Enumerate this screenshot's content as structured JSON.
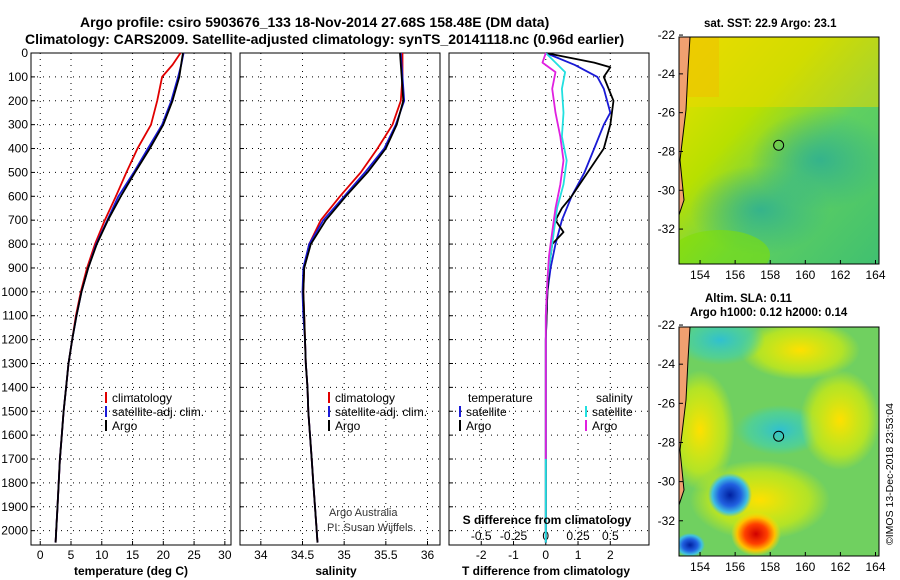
{
  "title": {
    "line1": "Argo profile: csiro 5903676_133 18-Nov-2014 27.68S 158.48E (DM data)",
    "line2": "Climatology: CARS2009. Satellite-adjusted climatology: synTS_20141118.nc (0.96d earlier)"
  },
  "colors": {
    "climatology": "#e00000",
    "satellite": "#1a1ad6",
    "argo": "#000000",
    "salinity_satellite": "#22e0e0",
    "salinity_argo": "#e020e0",
    "land": "#f0a070",
    "marker": "#000000"
  },
  "credit": {
    "line1": "Argo Australia",
    "line2": "PI: Susan Wijffels"
  },
  "stamp": "©IMOS 13-Dec-2018 23:53:04",
  "chart_data": [
    {
      "type": "line",
      "id": "temperature",
      "xlabel": "temperature (deg C)",
      "xlim": [
        -1.5,
        31
      ],
      "ylim": [
        2060,
        0
      ],
      "xticks": [
        0,
        5,
        10,
        15,
        20,
        25,
        30
      ],
      "yticks": [
        0,
        100,
        200,
        300,
        400,
        500,
        600,
        700,
        800,
        900,
        1000,
        1100,
        1200,
        1300,
        1400,
        1500,
        1600,
        1700,
        1800,
        1900,
        2000
      ],
      "legend": [
        "climatology",
        "satellite-adj. clim.",
        "Argo"
      ],
      "series": [
        {
          "name": "climatology",
          "color": "#e00000",
          "points": [
            [
              22.8,
              0
            ],
            [
              21.5,
              50
            ],
            [
              19.8,
              100
            ],
            [
              19.0,
              200
            ],
            [
              18.0,
              300
            ],
            [
              15.8,
              400
            ],
            [
              14.0,
              500
            ],
            [
              12.3,
              600
            ],
            [
              10.5,
              700
            ],
            [
              8.9,
              800
            ],
            [
              7.6,
              900
            ],
            [
              6.6,
              1000
            ],
            [
              5.8,
              1100
            ],
            [
              5.2,
              1200
            ],
            [
              4.6,
              1300
            ],
            [
              4.2,
              1400
            ],
            [
              3.8,
              1500
            ],
            [
              3.5,
              1600
            ],
            [
              3.2,
              1700
            ],
            [
              3.0,
              1800
            ],
            [
              2.8,
              1900
            ],
            [
              2.6,
              2000
            ],
            [
              2.5,
              2050
            ]
          ]
        },
        {
          "name": "satellite-adj. clim.",
          "color": "#1a1ad6",
          "points": [
            [
              23.3,
              0
            ],
            [
              22.9,
              50
            ],
            [
              22.4,
              100
            ],
            [
              21.3,
              200
            ],
            [
              19.8,
              300
            ],
            [
              17.5,
              400
            ],
            [
              15.2,
              500
            ],
            [
              12.7,
              600
            ],
            [
              10.9,
              700
            ],
            [
              9.1,
              800
            ],
            [
              7.8,
              900
            ],
            [
              6.7,
              1000
            ],
            [
              5.9,
              1100
            ],
            [
              5.2,
              1200
            ],
            [
              4.6,
              1300
            ],
            [
              4.2,
              1400
            ],
            [
              3.8,
              1500
            ],
            [
              3.5,
              1600
            ],
            [
              3.2,
              1700
            ],
            [
              3.0,
              1800
            ],
            [
              2.8,
              1900
            ],
            [
              2.6,
              2000
            ],
            [
              2.5,
              2050
            ]
          ]
        },
        {
          "name": "Argo",
          "color": "#000000",
          "points": [
            [
              23.2,
              0
            ],
            [
              23.0,
              30
            ],
            [
              22.6,
              100
            ],
            [
              21.5,
              200
            ],
            [
              20.0,
              300
            ],
            [
              17.8,
              400
            ],
            [
              15.4,
              500
            ],
            [
              13.1,
              600
            ],
            [
              11.0,
              700
            ],
            [
              9.2,
              800
            ],
            [
              7.8,
              900
            ],
            [
              6.7,
              1000
            ],
            [
              5.9,
              1100
            ],
            [
              5.2,
              1200
            ],
            [
              4.6,
              1300
            ],
            [
              4.2,
              1400
            ],
            [
              3.8,
              1500
            ],
            [
              3.5,
              1600
            ],
            [
              3.2,
              1700
            ],
            [
              3.0,
              1800
            ],
            [
              2.8,
              1900
            ],
            [
              2.6,
              2000
            ],
            [
              2.5,
              2050
            ]
          ]
        }
      ]
    },
    {
      "type": "line",
      "id": "salinity",
      "xlabel": "salinity",
      "xlim": [
        33.75,
        36.15
      ],
      "ylim": [
        2060,
        0
      ],
      "xticks": [
        34,
        34.5,
        35,
        35.5,
        36
      ],
      "legend": [
        "climatology",
        "satellite-adj. clim.",
        "Argo"
      ],
      "series": [
        {
          "name": "climatology",
          "color": "#e00000",
          "points": [
            [
              35.7,
              0
            ],
            [
              35.7,
              100
            ],
            [
              35.68,
              200
            ],
            [
              35.58,
              300
            ],
            [
              35.4,
              400
            ],
            [
              35.2,
              500
            ],
            [
              34.95,
              600
            ],
            [
              34.72,
              700
            ],
            [
              34.58,
              800
            ],
            [
              34.52,
              900
            ],
            [
              34.51,
              1000
            ],
            [
              34.52,
              1100
            ],
            [
              34.53,
              1200
            ],
            [
              34.54,
              1300
            ],
            [
              34.56,
              1400
            ],
            [
              34.57,
              1500
            ],
            [
              34.59,
              1600
            ],
            [
              34.61,
              1700
            ],
            [
              34.63,
              1800
            ],
            [
              34.65,
              1900
            ],
            [
              34.67,
              2000
            ],
            [
              34.68,
              2050
            ]
          ]
        },
        {
          "name": "satellite-adj. clim.",
          "color": "#1a1ad6",
          "points": [
            [
              35.68,
              0
            ],
            [
              35.7,
              100
            ],
            [
              35.72,
              200
            ],
            [
              35.62,
              300
            ],
            [
              35.48,
              400
            ],
            [
              35.25,
              500
            ],
            [
              35.0,
              600
            ],
            [
              34.75,
              700
            ],
            [
              34.58,
              800
            ],
            [
              34.51,
              900
            ],
            [
              34.5,
              1000
            ],
            [
              34.51,
              1100
            ],
            [
              34.53,
              1200
            ],
            [
              34.54,
              1300
            ],
            [
              34.56,
              1400
            ],
            [
              34.57,
              1500
            ],
            [
              34.59,
              1600
            ],
            [
              34.61,
              1700
            ],
            [
              34.63,
              1800
            ],
            [
              34.65,
              1900
            ],
            [
              34.67,
              2000
            ],
            [
              34.68,
              2050
            ]
          ]
        },
        {
          "name": "Argo",
          "color": "#000000",
          "points": [
            [
              35.67,
              0
            ],
            [
              35.69,
              100
            ],
            [
              35.71,
              200
            ],
            [
              35.63,
              300
            ],
            [
              35.5,
              400
            ],
            [
              35.28,
              500
            ],
            [
              35.02,
              600
            ],
            [
              34.78,
              700
            ],
            [
              34.6,
              800
            ],
            [
              34.52,
              900
            ],
            [
              34.51,
              1000
            ],
            [
              34.52,
              1100
            ],
            [
              34.53,
              1200
            ],
            [
              34.54,
              1300
            ],
            [
              34.56,
              1400
            ],
            [
              34.57,
              1500
            ],
            [
              34.59,
              1600
            ],
            [
              34.61,
              1700
            ],
            [
              34.63,
              1800
            ],
            [
              34.65,
              1900
            ],
            [
              34.67,
              2000
            ],
            [
              34.68,
              2050
            ]
          ]
        }
      ]
    },
    {
      "type": "line",
      "id": "difference",
      "xlabel": "T difference from climatology",
      "xlabel2": "S difference from climatology",
      "xlim": [
        -3,
        3.2
      ],
      "ylim": [
        2060,
        0
      ],
      "xticks": [
        -2,
        -1,
        0,
        1,
        2
      ],
      "xticks2": [
        "-0.5",
        "-0.25",
        "0",
        "0.25",
        "0.5"
      ],
      "legend_left_title": "temperature",
      "legend_left": [
        "satellite",
        "Argo"
      ],
      "legend_right_title": "salinity",
      "legend_right": [
        "satellite",
        "Argo"
      ],
      "series": [
        {
          "name": "T satellite",
          "color": "#1a1ad6",
          "points": [
            [
              0,
              0
            ],
            [
              0.9,
              50
            ],
            [
              1.6,
              100
            ],
            [
              1.8,
              150
            ],
            [
              1.9,
              200
            ],
            [
              2.0,
              250
            ],
            [
              1.8,
              300
            ],
            [
              1.5,
              400
            ],
            [
              1.2,
              500
            ],
            [
              0.8,
              600
            ],
            [
              0.5,
              700
            ],
            [
              0.3,
              800
            ],
            [
              0.15,
              900
            ],
            [
              0.05,
              1000
            ],
            [
              0,
              1200
            ],
            [
              0,
              2050
            ]
          ]
        },
        {
          "name": "T Argo",
          "color": "#000000",
          "points": [
            [
              0,
              0
            ],
            [
              1.5,
              40
            ],
            [
              2.0,
              60
            ],
            [
              1.8,
              100
            ],
            [
              2.1,
              200
            ],
            [
              2.0,
              300
            ],
            [
              1.8,
              400
            ],
            [
              1.3,
              500
            ],
            [
              0.8,
              600
            ],
            [
              0.5,
              650
            ],
            [
              0.3,
              700
            ],
            [
              0.55,
              750
            ],
            [
              0.2,
              800
            ],
            [
              0.1,
              900
            ],
            [
              0.05,
              1000
            ],
            [
              0,
              1200
            ],
            [
              0,
              2050
            ]
          ]
        },
        {
          "name": "S satellite",
          "color": "#22e0e0",
          "points": [
            [
              0,
              0
            ],
            [
              0.6,
              80
            ],
            [
              0.5,
              150
            ],
            [
              0.55,
              250
            ],
            [
              0.5,
              350
            ],
            [
              0.65,
              450
            ],
            [
              0.55,
              550
            ],
            [
              0.35,
              650
            ],
            [
              0.25,
              750
            ],
            [
              0.15,
              850
            ],
            [
              0.05,
              950
            ],
            [
              0,
              1100
            ],
            [
              0,
              2050
            ]
          ]
        },
        {
          "name": "S Argo",
          "color": "#e020e0",
          "points": [
            [
              0,
              0
            ],
            [
              -0.1,
              40
            ],
            [
              0.3,
              80
            ],
            [
              0.2,
              150
            ],
            [
              0.3,
              250
            ],
            [
              0.45,
              350
            ],
            [
              0.55,
              450
            ],
            [
              0.45,
              550
            ],
            [
              0.3,
              650
            ],
            [
              0.2,
              750
            ],
            [
              0.1,
              850
            ],
            [
              0.05,
              950
            ],
            [
              0,
              1100
            ],
            [
              0,
              1700
            ]
          ]
        }
      ]
    },
    {
      "type": "heatmap",
      "id": "sst",
      "title": "sat. SST: 22.9 Argo: 23.1",
      "xlim": [
        152.8,
        164.2
      ],
      "ylim": [
        -33.8,
        -22.1
      ],
      "xticks": [
        154,
        156,
        158,
        160,
        162,
        164
      ],
      "yticks": [
        -22,
        -24,
        -26,
        -28,
        -30,
        -32
      ],
      "marker": {
        "lon": 158.48,
        "lat": -27.68
      }
    },
    {
      "type": "heatmap",
      "id": "sla",
      "title": "Altim. SLA: 0.11",
      "subtitle": "Argo h1000: 0.12 h2000: 0.14",
      "xlim": [
        152.8,
        164.2
      ],
      "ylim": [
        -33.8,
        -22.1
      ],
      "xticks": [
        154,
        156,
        158,
        160,
        162,
        164
      ],
      "yticks": [
        -22,
        -24,
        -26,
        -28,
        -30,
        -32
      ],
      "marker": {
        "lon": 158.48,
        "lat": -27.68
      }
    }
  ]
}
